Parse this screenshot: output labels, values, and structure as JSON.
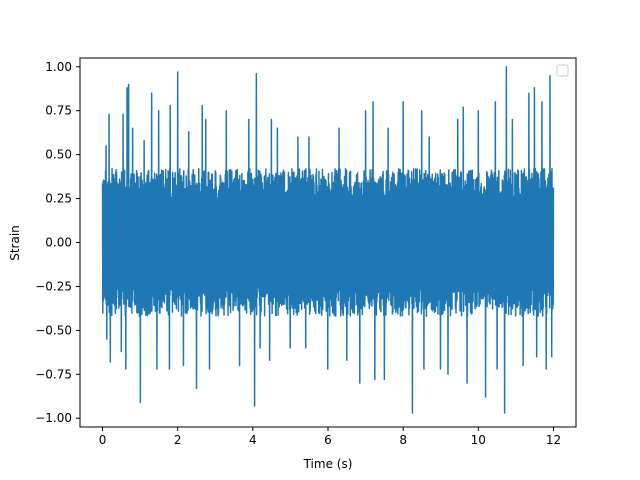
{
  "chart_data": {
    "type": "line",
    "title": "",
    "xlabel": "Time (s)",
    "ylabel": "Strain",
    "xlim": [
      -0.6,
      12.6
    ],
    "ylim": [
      -1.05,
      1.05
    ],
    "x_ticks": [
      0,
      2,
      4,
      6,
      8,
      10,
      12
    ],
    "x_tick_labels": [
      "0",
      "2",
      "4",
      "6",
      "8",
      "10",
      "12"
    ],
    "y_ticks": [
      -1.0,
      -0.75,
      -0.5,
      -0.25,
      0.0,
      0.25,
      0.5,
      0.75,
      1.0
    ],
    "y_tick_labels": [
      "−1.00",
      "−0.75",
      "−0.50",
      "−0.25",
      "0.00",
      "0.25",
      "0.50",
      "0.75",
      "1.00"
    ],
    "grid": false,
    "legend": {
      "placement": "top-right",
      "entries": []
    },
    "series": [
      {
        "color": "#1f77b4",
        "x_range": [
          0,
          12
        ],
        "band": [
          -0.42,
          0.42
        ],
        "peaks": [
          {
            "x": 0.1,
            "y": 0.55
          },
          {
            "x": 0.12,
            "y": -0.55
          },
          {
            "x": 0.17,
            "y": 0.73
          },
          {
            "x": 0.2,
            "y": -0.68
          },
          {
            "x": 0.5,
            "y": -0.62
          },
          {
            "x": 0.55,
            "y": 0.73
          },
          {
            "x": 0.62,
            "y": -0.72
          },
          {
            "x": 0.65,
            "y": 0.88
          },
          {
            "x": 0.7,
            "y": 0.9
          },
          {
            "x": 0.8,
            "y": 0.65
          },
          {
            "x": 1.0,
            "y": -0.91
          },
          {
            "x": 1.1,
            "y": 0.58
          },
          {
            "x": 1.3,
            "y": 0.85
          },
          {
            "x": 1.45,
            "y": -0.72
          },
          {
            "x": 1.5,
            "y": 0.75
          },
          {
            "x": 1.78,
            "y": -0.72
          },
          {
            "x": 1.8,
            "y": 0.78
          },
          {
            "x": 2.0,
            "y": 0.97
          },
          {
            "x": 2.15,
            "y": -0.7
          },
          {
            "x": 2.3,
            "y": 0.63
          },
          {
            "x": 2.5,
            "y": -0.83
          },
          {
            "x": 2.65,
            "y": 0.78
          },
          {
            "x": 2.75,
            "y": 0.7
          },
          {
            "x": 2.85,
            "y": -0.72
          },
          {
            "x": 3.3,
            "y": 0.75
          },
          {
            "x": 3.65,
            "y": -0.7
          },
          {
            "x": 3.9,
            "y": 0.7
          },
          {
            "x": 4.05,
            "y": -0.93
          },
          {
            "x": 4.1,
            "y": 0.96
          },
          {
            "x": 4.2,
            "y": -0.6
          },
          {
            "x": 4.45,
            "y": -0.67
          },
          {
            "x": 4.5,
            "y": 0.7
          },
          {
            "x": 4.65,
            "y": 0.65
          },
          {
            "x": 5.0,
            "y": -0.6
          },
          {
            "x": 5.2,
            "y": 0.6
          },
          {
            "x": 5.4,
            "y": -0.6
          },
          {
            "x": 5.5,
            "y": 0.6
          },
          {
            "x": 6.0,
            "y": -0.72
          },
          {
            "x": 6.3,
            "y": 0.65
          },
          {
            "x": 6.5,
            "y": -0.67
          },
          {
            "x": 6.85,
            "y": -0.8
          },
          {
            "x": 7.0,
            "y": 0.75
          },
          {
            "x": 7.2,
            "y": 0.8
          },
          {
            "x": 7.25,
            "y": -0.78
          },
          {
            "x": 7.5,
            "y": -0.78
          },
          {
            "x": 7.6,
            "y": 0.65
          },
          {
            "x": 8.0,
            "y": 0.8
          },
          {
            "x": 8.25,
            "y": -0.97
          },
          {
            "x": 8.5,
            "y": 0.75
          },
          {
            "x": 8.55,
            "y": -0.72
          },
          {
            "x": 8.7,
            "y": 0.6
          },
          {
            "x": 9.0,
            "y": -0.72
          },
          {
            "x": 9.2,
            "y": -0.75
          },
          {
            "x": 9.45,
            "y": 0.7
          },
          {
            "x": 9.6,
            "y": 0.77
          },
          {
            "x": 9.7,
            "y": -0.8
          },
          {
            "x": 10.0,
            "y": 0.75
          },
          {
            "x": 10.2,
            "y": -0.88
          },
          {
            "x": 10.45,
            "y": 0.8
          },
          {
            "x": 10.5,
            "y": -0.72
          },
          {
            "x": 10.7,
            "y": -0.97
          },
          {
            "x": 10.75,
            "y": 1.0
          },
          {
            "x": 10.9,
            "y": 0.7
          },
          {
            "x": 11.2,
            "y": -0.7
          },
          {
            "x": 11.35,
            "y": 0.85
          },
          {
            "x": 11.5,
            "y": 0.88
          },
          {
            "x": 11.55,
            "y": -0.65
          },
          {
            "x": 11.7,
            "y": 0.8
          },
          {
            "x": 11.8,
            "y": -0.72
          },
          {
            "x": 11.9,
            "y": 0.95
          },
          {
            "x": 11.95,
            "y": -0.65
          }
        ]
      }
    ]
  }
}
